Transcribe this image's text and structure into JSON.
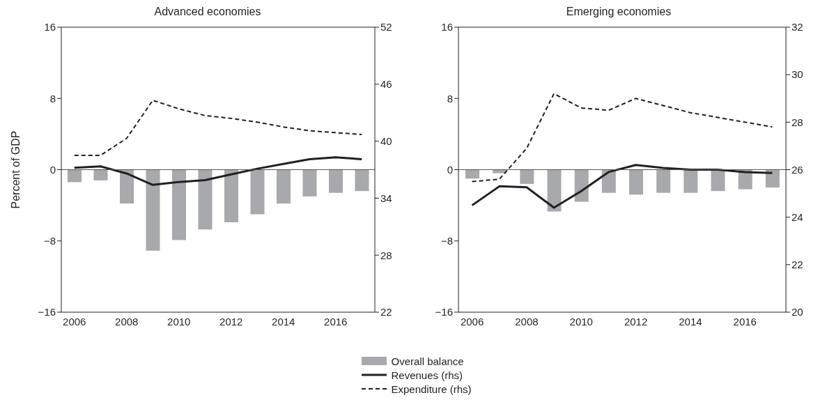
{
  "chart_data": [
    {
      "type": "bar",
      "title": "Advanced economies",
      "ylabel": "Percent of GDP",
      "categories": [
        "2006",
        null,
        "2008",
        null,
        "2010",
        null,
        "2012",
        null,
        "2014",
        null,
        "2016",
        null
      ],
      "series": [
        {
          "name": "Overall balance",
          "color": "#a7a9ac",
          "values": [
            -1.4,
            -1.2,
            -3.8,
            -9.1,
            -7.9,
            -6.7,
            -5.9,
            -5.0,
            -3.8,
            -3.0,
            -2.6,
            -2.4
          ]
        },
        {
          "name": "Revenues (rhs)",
          "type": "line",
          "axis": "y2",
          "color": "#231f20",
          "line_style": "solid",
          "values": [
            37.2,
            37.35,
            36.6,
            35.4,
            35.7,
            35.9,
            36.5,
            37.1,
            37.6,
            38.1,
            38.3,
            38.1
          ]
        },
        {
          "name": "Expenditure (rhs)",
          "type": "line",
          "axis": "y2",
          "color": "#231f20",
          "line_style": "dashed",
          "values": [
            38.5,
            38.5,
            40.3,
            44.3,
            43.4,
            42.7,
            42.4,
            42.0,
            41.5,
            41.1,
            40.9,
            40.7
          ]
        }
      ],
      "ylim": [
        -16,
        16
      ],
      "yticks": [
        -16,
        -8,
        0,
        8,
        16
      ],
      "y2lim": [
        22,
        52
      ],
      "y2ticks": [
        22,
        28,
        34,
        40,
        46,
        52
      ],
      "ref_lines": [
        {
          "axis": "y",
          "value": 0
        }
      ],
      "grid": false,
      "legend": "bottom",
      "marker": "none"
    },
    {
      "type": "bar",
      "title": "Emerging economies",
      "categories": [
        "2006",
        null,
        "2008",
        null,
        "2010",
        null,
        "2012",
        null,
        "2014",
        null,
        "2016",
        null
      ],
      "series": [
        {
          "color": "#a7a9ac",
          "values": [
            -1.0,
            -0.4,
            -1.6,
            -4.7,
            -3.6,
            -2.6,
            -2.8,
            -2.6,
            -2.6,
            -2.4,
            -2.2,
            -2.0
          ]
        },
        {
          "type": "line",
          "axis": "y2",
          "color": "#231f20",
          "line_style": "solid",
          "values": [
            24.5,
            25.3,
            25.26,
            24.4,
            25.1,
            25.9,
            26.2,
            26.07,
            26.0,
            26.0,
            25.9,
            25.86
          ]
        },
        {
          "type": "line",
          "axis": "y2",
          "color": "#231f20",
          "line_style": "dashed",
          "values": [
            25.5,
            25.6,
            26.9,
            29.2,
            28.6,
            28.5,
            29.0,
            28.7,
            28.4,
            28.2,
            28.0,
            27.8
          ]
        }
      ],
      "ylim": [
        -16,
        16
      ],
      "yticks": [
        -16,
        -8,
        0,
        8,
        16
      ],
      "y2lim": [
        20,
        32
      ],
      "y2ticks": [
        20,
        22,
        24,
        26,
        28,
        30,
        32
      ],
      "ref_lines": [
        {
          "axis": "y",
          "value": 0
        }
      ],
      "grid": false,
      "marker": "none"
    }
  ]
}
